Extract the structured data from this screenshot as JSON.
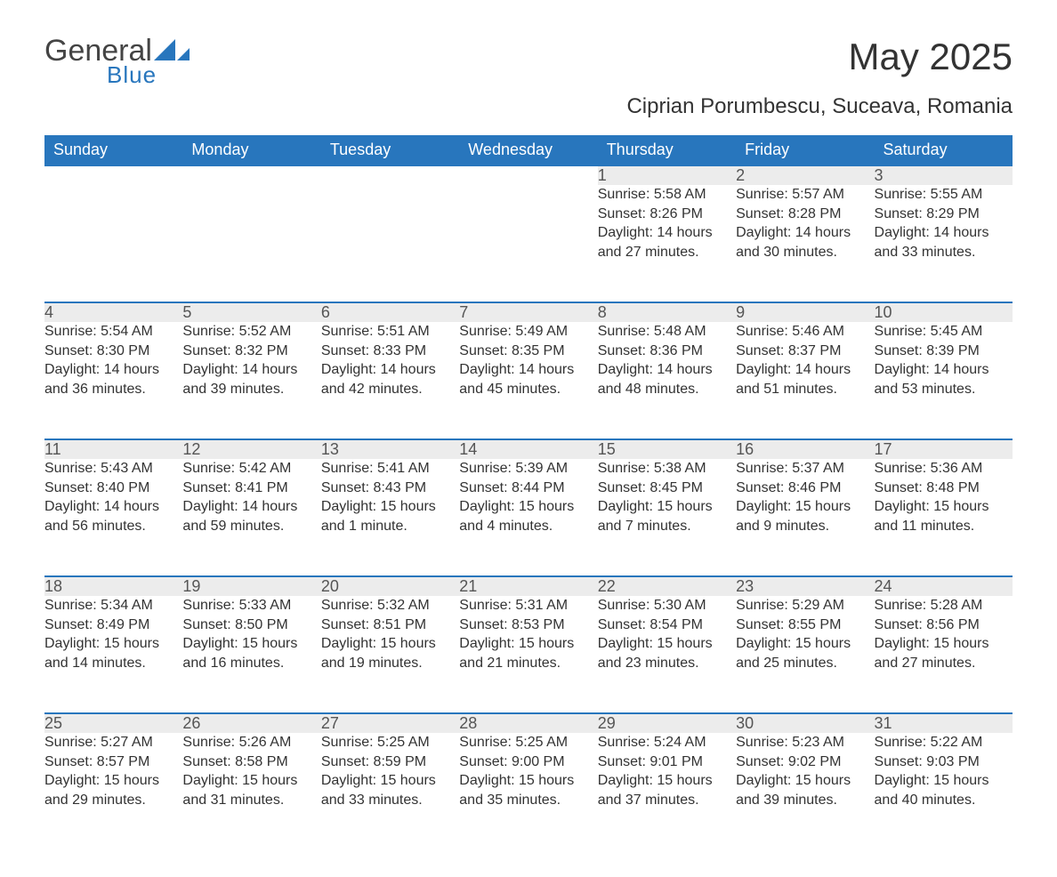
{
  "logo": {
    "main": "General",
    "sub": "Blue",
    "accent_color": "#2876bd",
    "text_color": "#444444"
  },
  "title": "May 2025",
  "subtitle": "Ciprian Porumbescu, Suceava, Romania",
  "colors": {
    "header_bg": "#2876bd",
    "header_text": "#ffffff",
    "daynum_bg": "#ececec",
    "body_text": "#333333",
    "page_bg": "#ffffff"
  },
  "weekdays": [
    "Sunday",
    "Monday",
    "Tuesday",
    "Wednesday",
    "Thursday",
    "Friday",
    "Saturday"
  ],
  "weeks": [
    [
      null,
      null,
      null,
      null,
      {
        "n": "1",
        "sr": "5:58 AM",
        "ss": "8:26 PM",
        "dl": "14 hours and 27 minutes."
      },
      {
        "n": "2",
        "sr": "5:57 AM",
        "ss": "8:28 PM",
        "dl": "14 hours and 30 minutes."
      },
      {
        "n": "3",
        "sr": "5:55 AM",
        "ss": "8:29 PM",
        "dl": "14 hours and 33 minutes."
      }
    ],
    [
      {
        "n": "4",
        "sr": "5:54 AM",
        "ss": "8:30 PM",
        "dl": "14 hours and 36 minutes."
      },
      {
        "n": "5",
        "sr": "5:52 AM",
        "ss": "8:32 PM",
        "dl": "14 hours and 39 minutes."
      },
      {
        "n": "6",
        "sr": "5:51 AM",
        "ss": "8:33 PM",
        "dl": "14 hours and 42 minutes."
      },
      {
        "n": "7",
        "sr": "5:49 AM",
        "ss": "8:35 PM",
        "dl": "14 hours and 45 minutes."
      },
      {
        "n": "8",
        "sr": "5:48 AM",
        "ss": "8:36 PM",
        "dl": "14 hours and 48 minutes."
      },
      {
        "n": "9",
        "sr": "5:46 AM",
        "ss": "8:37 PM",
        "dl": "14 hours and 51 minutes."
      },
      {
        "n": "10",
        "sr": "5:45 AM",
        "ss": "8:39 PM",
        "dl": "14 hours and 53 minutes."
      }
    ],
    [
      {
        "n": "11",
        "sr": "5:43 AM",
        "ss": "8:40 PM",
        "dl": "14 hours and 56 minutes."
      },
      {
        "n": "12",
        "sr": "5:42 AM",
        "ss": "8:41 PM",
        "dl": "14 hours and 59 minutes."
      },
      {
        "n": "13",
        "sr": "5:41 AM",
        "ss": "8:43 PM",
        "dl": "15 hours and 1 minute."
      },
      {
        "n": "14",
        "sr": "5:39 AM",
        "ss": "8:44 PM",
        "dl": "15 hours and 4 minutes."
      },
      {
        "n": "15",
        "sr": "5:38 AM",
        "ss": "8:45 PM",
        "dl": "15 hours and 7 minutes."
      },
      {
        "n": "16",
        "sr": "5:37 AM",
        "ss": "8:46 PM",
        "dl": "15 hours and 9 minutes."
      },
      {
        "n": "17",
        "sr": "5:36 AM",
        "ss": "8:48 PM",
        "dl": "15 hours and 11 minutes."
      }
    ],
    [
      {
        "n": "18",
        "sr": "5:34 AM",
        "ss": "8:49 PM",
        "dl": "15 hours and 14 minutes."
      },
      {
        "n": "19",
        "sr": "5:33 AM",
        "ss": "8:50 PM",
        "dl": "15 hours and 16 minutes."
      },
      {
        "n": "20",
        "sr": "5:32 AM",
        "ss": "8:51 PM",
        "dl": "15 hours and 19 minutes."
      },
      {
        "n": "21",
        "sr": "5:31 AM",
        "ss": "8:53 PM",
        "dl": "15 hours and 21 minutes."
      },
      {
        "n": "22",
        "sr": "5:30 AM",
        "ss": "8:54 PM",
        "dl": "15 hours and 23 minutes."
      },
      {
        "n": "23",
        "sr": "5:29 AM",
        "ss": "8:55 PM",
        "dl": "15 hours and 25 minutes."
      },
      {
        "n": "24",
        "sr": "5:28 AM",
        "ss": "8:56 PM",
        "dl": "15 hours and 27 minutes."
      }
    ],
    [
      {
        "n": "25",
        "sr": "5:27 AM",
        "ss": "8:57 PM",
        "dl": "15 hours and 29 minutes."
      },
      {
        "n": "26",
        "sr": "5:26 AM",
        "ss": "8:58 PM",
        "dl": "15 hours and 31 minutes."
      },
      {
        "n": "27",
        "sr": "5:25 AM",
        "ss": "8:59 PM",
        "dl": "15 hours and 33 minutes."
      },
      {
        "n": "28",
        "sr": "5:25 AM",
        "ss": "9:00 PM",
        "dl": "15 hours and 35 minutes."
      },
      {
        "n": "29",
        "sr": "5:24 AM",
        "ss": "9:01 PM",
        "dl": "15 hours and 37 minutes."
      },
      {
        "n": "30",
        "sr": "5:23 AM",
        "ss": "9:02 PM",
        "dl": "15 hours and 39 minutes."
      },
      {
        "n": "31",
        "sr": "5:22 AM",
        "ss": "9:03 PM",
        "dl": "15 hours and 40 minutes."
      }
    ]
  ],
  "labels": {
    "sunrise": "Sunrise: ",
    "sunset": "Sunset: ",
    "daylight": "Daylight: "
  }
}
